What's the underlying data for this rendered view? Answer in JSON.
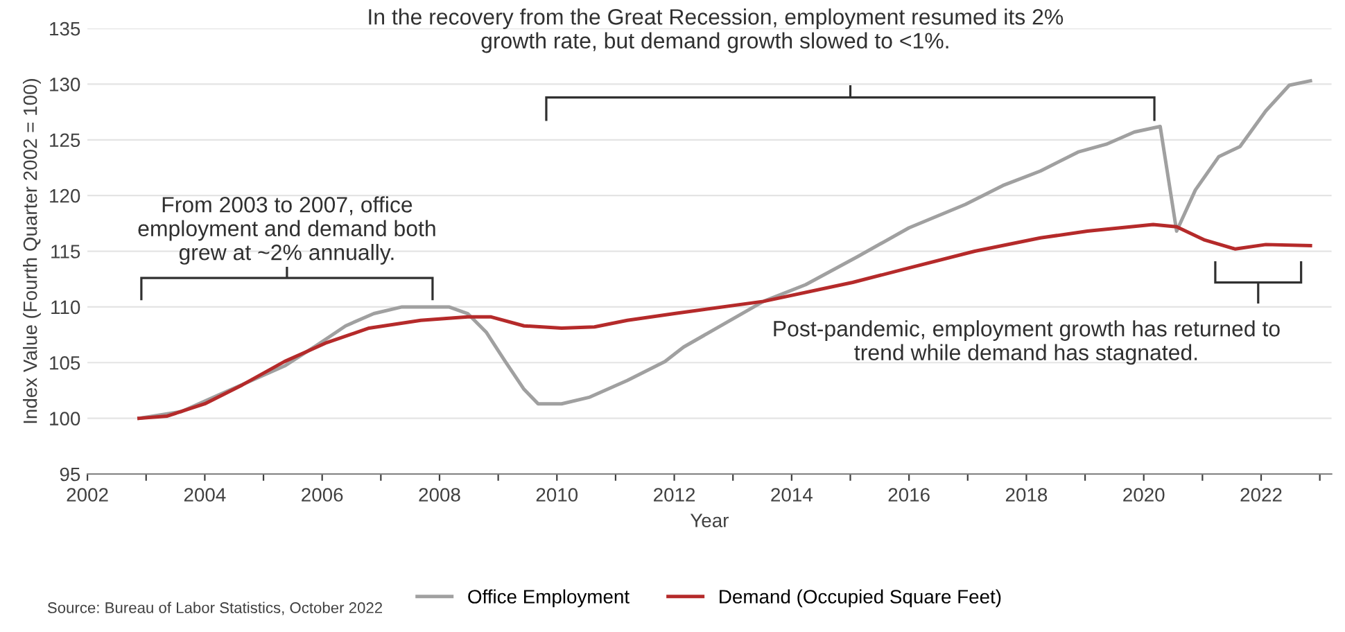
{
  "chart_data": {
    "type": "line",
    "xlabel": "Year",
    "ylabel": "Index Value (Fourth Quarter 2002 = 100)",
    "xlim": [
      2002,
      2023.2
    ],
    "ylim": [
      95,
      135
    ],
    "xticks": [
      2002,
      {
        "value": 2003,
        "label": null
      },
      2004,
      {
        "value": 2005,
        "label": null
      },
      2006,
      {
        "value": 2007,
        "label": null
      },
      2008,
      {
        "value": 2009,
        "label": null
      },
      2010,
      {
        "value": 2011,
        "label": null
      },
      2012,
      {
        "value": 2013,
        "label": null
      },
      2014,
      {
        "value": 2015,
        "label": null
      },
      2016,
      {
        "value": 2017,
        "label": null
      },
      2018,
      {
        "value": 2019,
        "label": null
      },
      2020,
      {
        "value": 2021,
        "label": null
      },
      2022,
      {
        "value": 2023,
        "label": null
      }
    ],
    "yticks": [
      95,
      100,
      105,
      110,
      115,
      120,
      125,
      130,
      135
    ],
    "grid": "y",
    "legend": "bottom",
    "marker": "none",
    "line_style": "solid",
    "series": [
      {
        "name": "Office Employment",
        "color": "#a0a0a0",
        "x": [
          2002.88,
          2003.6,
          2004.24,
          2004.8,
          2005.36,
          2005.92,
          2006.4,
          2006.88,
          2007.36,
          2008.16,
          2008.48,
          2008.8,
          2009.12,
          2009.44,
          2009.68,
          2010.08,
          2010.56,
          2011.2,
          2011.84,
          2012.16,
          2013.52,
          2014.24,
          2015.12,
          2016,
          2016.96,
          2017.6,
          2018.24,
          2018.88,
          2019.36,
          2019.84,
          2020.28,
          2020.56,
          2020.88,
          2021.28,
          2021.64,
          2022.08,
          2022.48,
          2022.84
        ],
        "values": [
          100,
          100.6,
          102.1,
          103.4,
          104.7,
          106.6,
          108.3,
          109.4,
          110,
          110,
          109.4,
          107.7,
          105.1,
          102.6,
          101.3,
          101.3,
          101.9,
          103.4,
          105.1,
          106.4,
          110.5,
          112,
          114.5,
          117.1,
          119.2,
          120.9,
          122.2,
          123.9,
          124.6,
          125.7,
          126.2,
          116.8,
          120.5,
          123.5,
          124.4,
          127.6,
          129.9,
          130.3
        ]
      },
      {
        "name": "Demand (Occupied Square Feet)",
        "color": "#b52a2a",
        "x": [
          2002.88,
          2003.36,
          2004,
          2004.64,
          2005.36,
          2006.08,
          2006.8,
          2007.68,
          2008.48,
          2008.88,
          2009.44,
          2010.08,
          2010.64,
          2011.2,
          2012,
          2013.52,
          2015.04,
          2016,
          2017.12,
          2018.24,
          2019.04,
          2020.16,
          2020.56,
          2021.04,
          2021.56,
          2022.08,
          2022.84
        ],
        "values": [
          100,
          100.2,
          101.3,
          103,
          105.1,
          106.8,
          108.1,
          108.8,
          109.1,
          109.1,
          108.3,
          108.1,
          108.2,
          108.8,
          109.4,
          110.5,
          112.2,
          113.5,
          115,
          116.2,
          116.8,
          117.4,
          117.2,
          116,
          115.2,
          115.6,
          115.5
        ]
      }
    ],
    "annotations": [
      "From 2003 to 2007, office employment and demand both grew at ~2% annually.",
      "In the recovery from the Great Recession, employment resumed its 2% growth rate, but demand growth slowed to <1%.",
      "Post-pandemic, employment growth has returned to trend while demand has stagnated.",
      "Source: Bureau of Labor Statistics, October 2022"
    ]
  }
}
